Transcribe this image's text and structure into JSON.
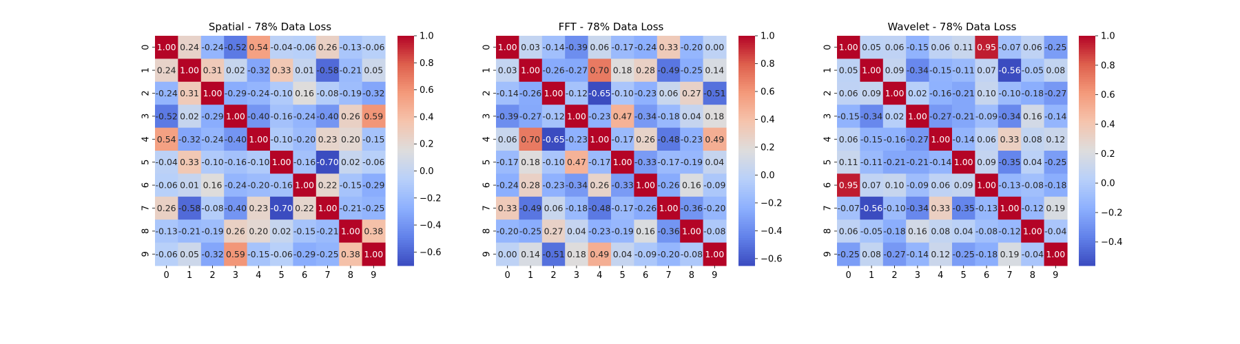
{
  "chart_data": [
    {
      "type": "heatmap",
      "title": "Spatial - 78% Data Loss",
      "x_categories": [
        "0",
        "1",
        "2",
        "3",
        "4",
        "5",
        "6",
        "7",
        "8",
        "9"
      ],
      "y_categories": [
        "0",
        "1",
        "2",
        "3",
        "4",
        "5",
        "6",
        "7",
        "8",
        "9"
      ],
      "values": [
        [
          1.0,
          0.24,
          -0.24,
          -0.52,
          0.54,
          -0.04,
          -0.06,
          0.26,
          -0.13,
          -0.06
        ],
        [
          0.24,
          1.0,
          0.31,
          0.02,
          -0.32,
          0.33,
          0.01,
          -0.58,
          -0.21,
          0.05
        ],
        [
          -0.24,
          0.31,
          1.0,
          -0.29,
          -0.24,
          -0.1,
          0.16,
          -0.08,
          -0.19,
          -0.32
        ],
        [
          -0.52,
          0.02,
          -0.29,
          1.0,
          -0.4,
          -0.16,
          -0.24,
          -0.4,
          0.26,
          0.59
        ],
        [
          0.54,
          -0.32,
          -0.24,
          -0.4,
          1.0,
          -0.1,
          -0.2,
          0.23,
          0.2,
          -0.15
        ],
        [
          -0.04,
          0.33,
          -0.1,
          -0.16,
          -0.1,
          1.0,
          -0.16,
          -0.7,
          0.02,
          -0.06
        ],
        [
          -0.06,
          0.01,
          0.16,
          -0.24,
          -0.2,
          -0.16,
          1.0,
          0.22,
          -0.15,
          -0.29
        ],
        [
          0.26,
          -0.58,
          -0.08,
          -0.4,
          0.23,
          -0.7,
          0.22,
          1.0,
          -0.21,
          -0.25
        ],
        [
          -0.13,
          -0.21,
          -0.19,
          0.26,
          0.2,
          0.02,
          -0.15,
          -0.21,
          1.0,
          0.38
        ],
        [
          -0.06,
          0.05,
          -0.32,
          0.59,
          -0.15,
          -0.06,
          -0.29,
          -0.25,
          0.38,
          1.0
        ]
      ],
      "colorbar": {
        "vmin": -0.7,
        "vmax": 1.0,
        "ticks": [
          -0.6,
          -0.4,
          -0.2,
          0.0,
          0.2,
          0.4,
          0.6,
          0.8,
          1.0
        ]
      }
    },
    {
      "type": "heatmap",
      "title": "FFT - 78% Data Loss",
      "x_categories": [
        "0",
        "1",
        "2",
        "3",
        "4",
        "5",
        "6",
        "7",
        "8",
        "9"
      ],
      "y_categories": [
        "0",
        "1",
        "2",
        "3",
        "4",
        "5",
        "6",
        "7",
        "8",
        "9"
      ],
      "values": [
        [
          1.0,
          0.03,
          -0.14,
          -0.39,
          0.06,
          -0.17,
          -0.24,
          0.33,
          -0.2,
          0.0
        ],
        [
          0.03,
          1.0,
          -0.26,
          -0.27,
          0.7,
          0.18,
          0.28,
          -0.49,
          -0.25,
          0.14
        ],
        [
          -0.14,
          -0.26,
          1.0,
          -0.12,
          -0.65,
          -0.1,
          -0.23,
          0.06,
          0.27,
          -0.51
        ],
        [
          -0.39,
          -0.27,
          -0.12,
          1.0,
          -0.23,
          0.47,
          -0.34,
          -0.18,
          0.04,
          0.18
        ],
        [
          0.06,
          0.7,
          -0.65,
          -0.23,
          1.0,
          -0.17,
          0.26,
          -0.48,
          -0.23,
          0.49
        ],
        [
          -0.17,
          0.18,
          -0.1,
          0.47,
          -0.17,
          1.0,
          -0.33,
          -0.17,
          -0.19,
          0.04
        ],
        [
          -0.24,
          0.28,
          -0.23,
          -0.34,
          0.26,
          -0.33,
          1.0,
          -0.26,
          0.16,
          -0.09
        ],
        [
          0.33,
          -0.49,
          0.06,
          -0.18,
          -0.48,
          -0.17,
          -0.26,
          1.0,
          -0.36,
          -0.2
        ],
        [
          -0.2,
          -0.25,
          0.27,
          0.04,
          -0.23,
          -0.19,
          0.16,
          -0.36,
          1.0,
          -0.08
        ],
        [
          0.0,
          0.14,
          -0.51,
          0.18,
          0.49,
          0.04,
          -0.09,
          -0.2,
          -0.08,
          1.0
        ]
      ],
      "colorbar": {
        "vmin": -0.65,
        "vmax": 1.0,
        "ticks": [
          -0.6,
          -0.4,
          -0.2,
          0.0,
          0.2,
          0.4,
          0.6,
          0.8,
          1.0
        ]
      }
    },
    {
      "type": "heatmap",
      "title": "Wavelet - 78% Data Loss",
      "x_categories": [
        "0",
        "1",
        "2",
        "3",
        "4",
        "5",
        "6",
        "7",
        "8",
        "9"
      ],
      "y_categories": [
        "0",
        "1",
        "2",
        "3",
        "4",
        "5",
        "6",
        "7",
        "8",
        "9"
      ],
      "values": [
        [
          1.0,
          0.05,
          0.06,
          -0.15,
          0.06,
          0.11,
          0.95,
          -0.07,
          0.06,
          -0.25
        ],
        [
          0.05,
          1.0,
          0.09,
          -0.34,
          -0.15,
          -0.11,
          0.07,
          -0.56,
          -0.05,
          0.08
        ],
        [
          0.06,
          0.09,
          1.0,
          0.02,
          -0.16,
          -0.21,
          0.1,
          -0.1,
          -0.18,
          -0.27
        ],
        [
          -0.15,
          -0.34,
          0.02,
          1.0,
          -0.27,
          -0.21,
          -0.09,
          -0.34,
          0.16,
          -0.14
        ],
        [
          0.06,
          -0.15,
          -0.16,
          -0.27,
          1.0,
          -0.14,
          0.06,
          0.33,
          0.08,
          0.12
        ],
        [
          0.11,
          -0.11,
          -0.21,
          -0.21,
          -0.14,
          1.0,
          0.09,
          -0.35,
          0.04,
          -0.25
        ],
        [
          0.95,
          0.07,
          0.1,
          -0.09,
          0.06,
          0.09,
          1.0,
          -0.13,
          -0.08,
          -0.18
        ],
        [
          -0.07,
          -0.56,
          -0.1,
          -0.34,
          0.33,
          -0.35,
          -0.13,
          1.0,
          -0.12,
          0.19
        ],
        [
          0.06,
          -0.05,
          -0.18,
          0.16,
          0.08,
          0.04,
          -0.08,
          -0.12,
          1.0,
          -0.04
        ],
        [
          -0.25,
          0.08,
          -0.27,
          -0.14,
          0.12,
          -0.25,
          -0.18,
          0.19,
          -0.04,
          1.0
        ]
      ],
      "colorbar": {
        "vmin": -0.56,
        "vmax": 1.0,
        "ticks": [
          -0.4,
          -0.2,
          0.0,
          0.2,
          0.4,
          0.6,
          0.8,
          1.0
        ]
      }
    }
  ]
}
